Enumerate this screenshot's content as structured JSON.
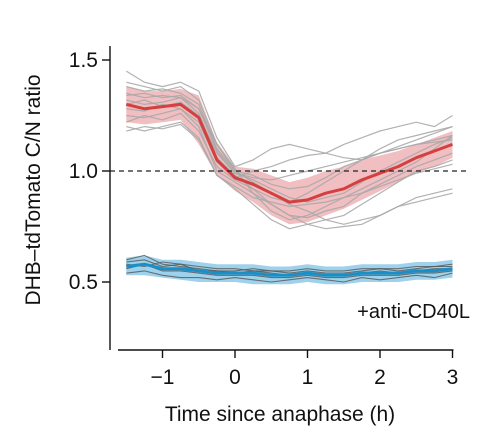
{
  "chart_data": {
    "type": "line",
    "title": "",
    "xlabel": "Time since anaphase (h)",
    "ylabel": "DHB–tdTomato C/N ratio",
    "xlim": [
      -1.75,
      3.05
    ],
    "ylim": [
      0.2,
      1.6
    ],
    "xticks": [
      -1,
      0,
      1,
      2,
      3
    ],
    "yticks": [
      0.5,
      1.0,
      1.5
    ],
    "xtick_labels": [
      "−1",
      "0",
      "1",
      "2",
      "3"
    ],
    "ytick_labels": [
      "0.5",
      "1.0",
      "1.5"
    ],
    "reference_line": {
      "y": 1.0,
      "style": "dashed",
      "color": "#222222"
    },
    "annotation": {
      "text": "+anti-CD40L",
      "color": "#1a8fc7"
    },
    "grid": false,
    "legend": "none",
    "colors": {
      "control_mean": "#d43f3f",
      "control_band": "#eba2a7",
      "control_traces": "#a9a9a9",
      "treated_mean": "#1a8fc7",
      "treated_band": "#7ec3e6",
      "treated_traces": "#555555"
    },
    "series": [
      {
        "x": [
          -1.5,
          -1.25,
          -1.0,
          -0.75,
          -0.5,
          -0.25,
          0.0,
          0.25,
          0.5,
          0.75,
          1.0,
          1.25,
          1.5,
          1.75,
          2.0,
          2.25,
          2.5,
          2.75,
          3.0
        ],
        "y": [
          1.3,
          1.28,
          1.29,
          1.3,
          1.24,
          1.05,
          0.97,
          0.94,
          0.9,
          0.86,
          0.87,
          0.9,
          0.92,
          0.96,
          0.99,
          1.02,
          1.06,
          1.09,
          1.12
        ],
        "lower": [
          1.22,
          1.21,
          1.22,
          1.23,
          1.12,
          0.98,
          0.91,
          0.86,
          0.8,
          0.76,
          0.77,
          0.8,
          0.83,
          0.87,
          0.91,
          0.95,
          0.99,
          1.02,
          1.06
        ],
        "upper": [
          1.38,
          1.36,
          1.36,
          1.37,
          1.34,
          1.13,
          1.02,
          1.01,
          0.98,
          0.95,
          0.97,
          1.0,
          1.02,
          1.05,
          1.07,
          1.09,
          1.12,
          1.15,
          1.18
        ]
      },
      {
        "x": [
          -1.5,
          -1.25,
          -1.0,
          -0.75,
          -0.5,
          -0.25,
          0.0,
          0.25,
          0.5,
          0.75,
          1.0,
          1.25,
          1.5,
          1.75,
          2.0,
          2.25,
          2.5,
          2.75,
          3.0
        ],
        "y": [
          0.57,
          0.58,
          0.56,
          0.56,
          0.55,
          0.54,
          0.54,
          0.54,
          0.53,
          0.53,
          0.54,
          0.53,
          0.53,
          0.54,
          0.54,
          0.54,
          0.55,
          0.55,
          0.56
        ],
        "lower": [
          0.53,
          0.53,
          0.52,
          0.51,
          0.5,
          0.5,
          0.5,
          0.49,
          0.49,
          0.49,
          0.5,
          0.49,
          0.49,
          0.5,
          0.5,
          0.5,
          0.51,
          0.51,
          0.52
        ],
        "upper": [
          0.61,
          0.62,
          0.6,
          0.6,
          0.59,
          0.58,
          0.58,
          0.58,
          0.57,
          0.57,
          0.58,
          0.57,
          0.57,
          0.58,
          0.58,
          0.58,
          0.59,
          0.59,
          0.6
        ]
      }
    ],
    "individual_traces": {
      "control": [
        {
          "y": [
            1.35,
            1.33,
            1.34,
            1.33,
            1.28,
            1.12,
            1.0,
            0.98,
            0.94,
            0.92,
            0.93,
            0.97,
            1.02,
            1.05,
            1.08,
            1.11,
            1.14,
            1.17,
            1.2
          ]
        },
        {
          "y": [
            1.25,
            1.24,
            1.26,
            1.28,
            1.2,
            1.0,
            0.95,
            0.9,
            0.85,
            0.8,
            0.79,
            0.82,
            0.84,
            0.9,
            0.94,
            0.98,
            1.02,
            1.05,
            1.08
          ]
        },
        {
          "y": [
            1.45,
            1.4,
            1.38,
            1.4,
            1.36,
            1.15,
            1.02,
            1.05,
            1.1,
            1.12,
            1.1,
            1.08,
            1.12,
            1.15,
            1.18,
            1.2,
            1.22,
            1.2,
            1.25
          ]
        },
        {
          "y": [
            1.2,
            1.18,
            1.2,
            1.22,
            1.15,
            0.98,
            0.92,
            0.85,
            0.78,
            0.74,
            0.76,
            0.78,
            0.8,
            0.85,
            0.9,
            0.95,
            1.0,
            1.02,
            1.05
          ]
        },
        {
          "y": [
            1.3,
            1.32,
            1.29,
            1.31,
            1.25,
            1.08,
            0.99,
            0.96,
            0.92,
            0.88,
            0.86,
            0.88,
            0.9,
            0.95,
            1.0,
            1.04,
            1.08,
            1.12,
            1.15
          ]
        },
        {
          "y": [
            1.38,
            1.36,
            1.37,
            1.35,
            1.3,
            1.1,
            1.0,
            0.95,
            0.9,
            0.85,
            0.82,
            0.78,
            0.76,
            0.78,
            0.8,
            0.84,
            0.88,
            0.9,
            0.92
          ]
        },
        {
          "y": [
            1.22,
            1.25,
            1.23,
            1.26,
            1.18,
            1.02,
            0.96,
            0.92,
            0.88,
            0.86,
            0.9,
            0.95,
            1.0,
            1.05,
            1.1,
            1.14,
            1.16,
            1.18,
            1.2
          ]
        },
        {
          "y": [
            1.32,
            1.3,
            1.31,
            1.33,
            1.26,
            1.06,
            0.98,
            0.92,
            0.85,
            0.8,
            0.76,
            0.74,
            0.75,
            0.76,
            0.8,
            0.84,
            0.86,
            0.88,
            0.9
          ]
        },
        {
          "y": [
            1.28,
            1.27,
            1.3,
            1.28,
            1.22,
            1.04,
            0.97,
            1.0,
            1.02,
            1.05,
            1.07,
            1.08,
            1.06,
            1.05,
            1.08,
            1.1,
            1.12,
            1.13,
            1.14
          ]
        },
        {
          "y": [
            1.4,
            1.38,
            1.36,
            1.38,
            1.32,
            1.12,
            1.01,
            0.9,
            0.82,
            0.78,
            0.8,
            0.84,
            0.88,
            0.92,
            0.96,
            1.0,
            1.04,
            1.1,
            1.16
          ]
        },
        {
          "y": [
            1.18,
            1.2,
            1.19,
            1.21,
            1.14,
            0.98,
            0.93,
            0.88,
            0.86,
            0.84,
            0.85,
            0.86,
            0.88,
            0.9,
            0.93,
            0.96,
            0.99,
            1.01,
            1.03
          ]
        },
        {
          "y": [
            1.34,
            1.35,
            1.33,
            1.34,
            1.28,
            1.09,
            0.99,
            0.97,
            0.96,
            0.98,
            1.0,
            1.02,
            1.04,
            1.06,
            1.08,
            1.1,
            1.12,
            1.14,
            1.16
          ]
        }
      ],
      "treated": [
        {
          "y": [
            0.6,
            0.62,
            0.58,
            0.57,
            0.56,
            0.55,
            0.55,
            0.56,
            0.55,
            0.54,
            0.55,
            0.54,
            0.54,
            0.55,
            0.56,
            0.55,
            0.56,
            0.57,
            0.58
          ]
        },
        {
          "y": [
            0.54,
            0.55,
            0.53,
            0.52,
            0.52,
            0.51,
            0.52,
            0.51,
            0.5,
            0.51,
            0.52,
            0.51,
            0.5,
            0.52,
            0.51,
            0.52,
            0.53,
            0.52,
            0.54
          ]
        },
        {
          "y": [
            0.58,
            0.57,
            0.59,
            0.58,
            0.57,
            0.56,
            0.56,
            0.55,
            0.55,
            0.55,
            0.56,
            0.55,
            0.55,
            0.56,
            0.56,
            0.56,
            0.57,
            0.57,
            0.57
          ]
        },
        {
          "y": [
            0.56,
            0.58,
            0.55,
            0.55,
            0.54,
            0.53,
            0.53,
            0.53,
            0.52,
            0.52,
            0.53,
            0.52,
            0.52,
            0.53,
            0.53,
            0.53,
            0.54,
            0.54,
            0.55
          ]
        },
        {
          "y": [
            0.59,
            0.6,
            0.57,
            0.58,
            0.55,
            0.55,
            0.54,
            0.55,
            0.54,
            0.53,
            0.54,
            0.53,
            0.53,
            0.54,
            0.55,
            0.54,
            0.55,
            0.56,
            0.56
          ]
        }
      ]
    }
  }
}
